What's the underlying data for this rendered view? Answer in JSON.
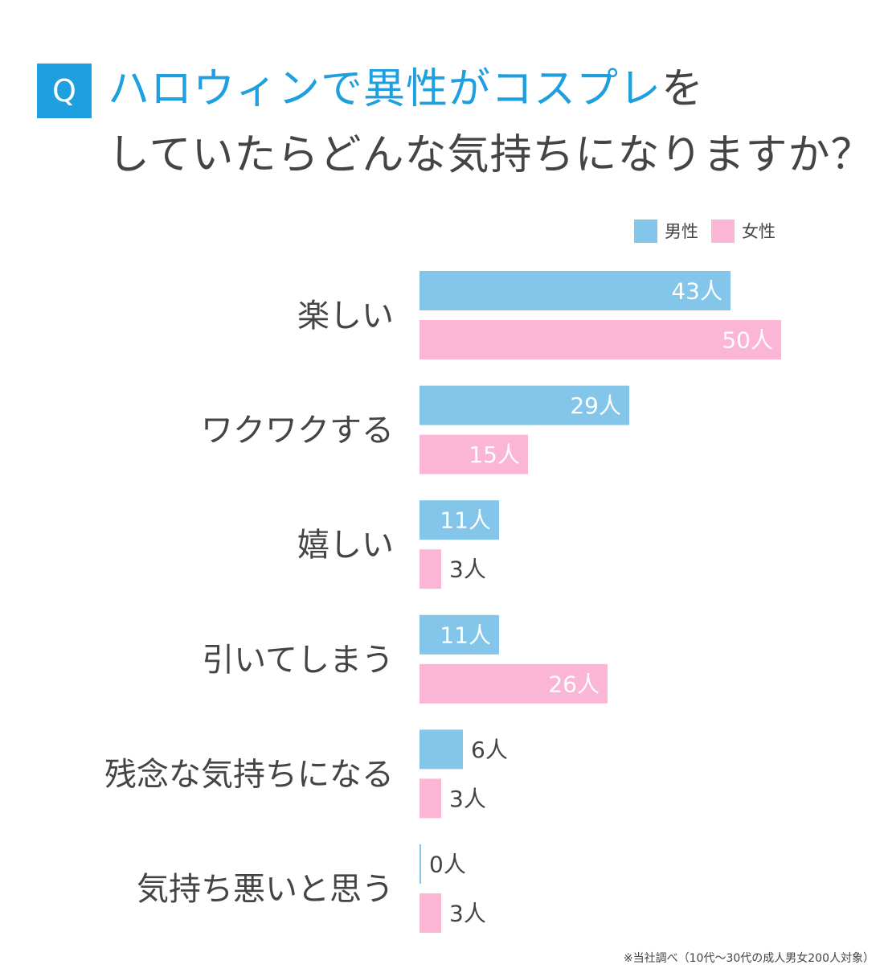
{
  "header": {
    "badge": "Q",
    "title_line1_a": "ハロウィンで",
    "title_line1_b": "異性がコスプレ",
    "title_line1_c": "を",
    "title_line2": "していたらどんな気持ちになりますか？"
  },
  "legend": {
    "male": "男性",
    "female": "女性"
  },
  "colors": {
    "accent": "#1e9fe0",
    "male": "#83c6ea",
    "female": "#fbb6d5",
    "text": "#444444"
  },
  "chart_data": {
    "type": "bar",
    "orientation": "horizontal",
    "categories": [
      "楽しい",
      "ワクワクする",
      "嬉しい",
      "引いてしまう",
      "残念な気持ちになる",
      "気持ち悪いと思う"
    ],
    "series": [
      {
        "name": "男性",
        "values": [
          43,
          29,
          11,
          11,
          6,
          0
        ]
      },
      {
        "name": "女性",
        "values": [
          50,
          15,
          3,
          26,
          3,
          3
        ]
      }
    ],
    "unit": "人",
    "legend_position": "top-right",
    "grid": false
  },
  "footnote": "※当社調べ（10代〜30代の成人男女200人対象）"
}
